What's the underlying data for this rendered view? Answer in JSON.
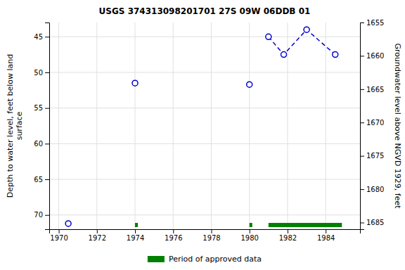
{
  "chart_data": {
    "type": "scatter",
    "title": "USGS 374313098201701 27S 09W 06DDB 01",
    "ylabel": "Depth to water level, feet below land\n surface",
    "y2label": "Groundwater level above NGVD 1929, feet",
    "x": [
      1970.5,
      1974.0,
      1980.0,
      1981.0,
      1981.8,
      1983.0,
      1984.5
    ],
    "series": [
      {
        "type": "scatter",
        "marker": "circle",
        "color": "#0000cc",
        "values": [
          71.2,
          51.5,
          51.7,
          45.0,
          47.5,
          44.0,
          47.5
        ]
      },
      {
        "type": "line",
        "line_style": "dashed",
        "marker": "none",
        "color": "#0000cc",
        "values": [
          null,
          null,
          null,
          45.0,
          47.5,
          44.0,
          47.5
        ]
      }
    ],
    "approved_periods": {
      "name": "Period of approved data",
      "color": "#008000",
      "start": [
        1974.0,
        1980.0,
        1981.0
      ],
      "end": [
        1974.15,
        1980.15,
        1984.85
      ]
    },
    "xlim": [
      1969.5,
      1985.8
    ],
    "xticks": [
      1970,
      1972,
      1974,
      1976,
      1978,
      1980,
      1982,
      1984
    ],
    "ylim": [
      72,
      43
    ],
    "yticks": [
      45,
      50,
      55,
      60,
      65,
      70
    ],
    "y2lim": [
      1686,
      1655
    ],
    "y2ticks": [
      1655,
      1660,
      1665,
      1670,
      1675,
      1680,
      1685
    ],
    "grid": true,
    "legend": "bottom"
  }
}
